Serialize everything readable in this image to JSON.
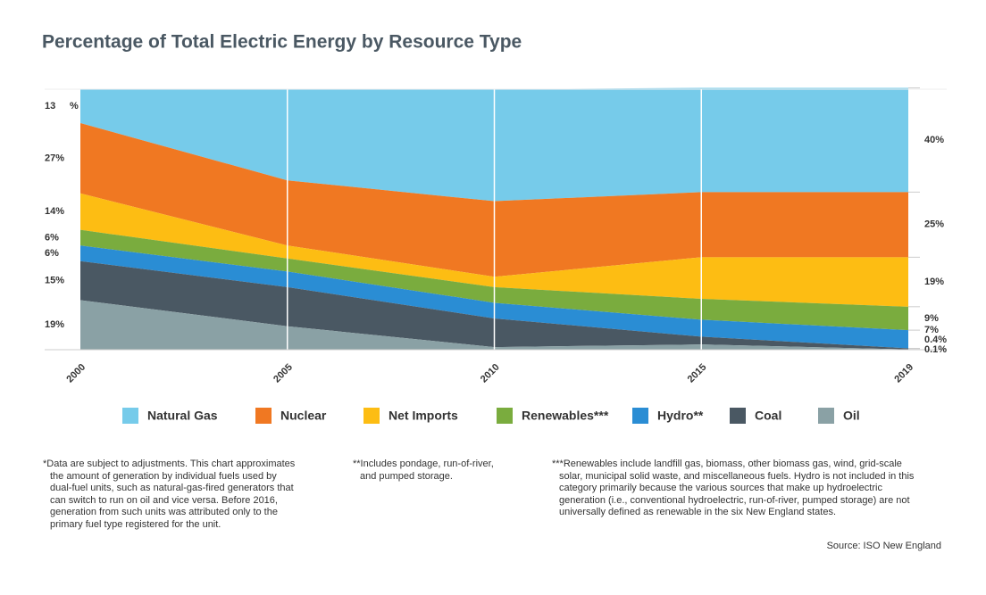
{
  "chart_data": {
    "type": "stacked_area",
    "title": "Percentage of Total Electric Energy by Resource Type",
    "categories": [
      "2000",
      "2005",
      "2010",
      "2015",
      "2019"
    ],
    "ylim": [
      0,
      100
    ],
    "y_unit_label": "%",
    "series": [
      {
        "name": "Natural Gas",
        "color": "#76cbea",
        "values": [
          13,
          35,
          43,
          40,
          40
        ],
        "value_labels": [
          "13",
          null,
          null,
          null,
          "40%"
        ]
      },
      {
        "name": "Nuclear",
        "color": "#f07822",
        "values": [
          27,
          25,
          29,
          25,
          25
        ],
        "value_labels": [
          "27%",
          null,
          null,
          null,
          "25%"
        ]
      },
      {
        "name": "Net Imports",
        "color": "#fdbd13",
        "values": [
          14,
          5,
          4,
          16,
          19
        ],
        "value_labels": [
          "14%",
          null,
          null,
          null,
          "19%"
        ]
      },
      {
        "name": "Renewables***",
        "color": "#7aac3e",
        "values": [
          6,
          5,
          6,
          8,
          9
        ],
        "value_labels": [
          "6%",
          null,
          null,
          null,
          "9%"
        ]
      },
      {
        "name": "Hydro**",
        "color": "#2a8dd4",
        "values": [
          6,
          6,
          6,
          6.5,
          7
        ],
        "value_labels": [
          "6%",
          null,
          null,
          null,
          "7%"
        ]
      },
      {
        "name": "Coal",
        "color": "#4a5863",
        "values": [
          15,
          15,
          11,
          3,
          0.4
        ],
        "value_labels": [
          "15%",
          null,
          null,
          null,
          "0.4%"
        ]
      },
      {
        "name": "Oil",
        "color": "#8aa1a5",
        "values": [
          19,
          9,
          1,
          2,
          0.1
        ],
        "value_labels": [
          "19%",
          null,
          null,
          null,
          "0.1%"
        ]
      }
    ],
    "notes": [
      [
        "*Data are subject to adjustments. This chart approximates",
        "the amount of generation by individual fuels used by",
        "dual-fuel units, such as natural-gas-fired generators that",
        "can switch to run on oil and vice versa. Before 2016,",
        "generation from such units was attributed only to the",
        "primary fuel type registered for the unit."
      ],
      [
        "**Includes pondage, run-of-river,",
        "and pumped storage."
      ],
      [
        "***Renewables include landfill gas, biomass, other biomass gas, wind, grid-scale",
        "solar, municipal solid waste, and miscellaneous fuels. Hydro is not included in this",
        "category primarily because the various sources that make up hydroelectric",
        "generation (i.e., conventional hydroelectric, run-of-river, pumped storage) are not",
        "universally defined as renewable in the six New England states."
      ]
    ],
    "source": "Source: ISO New England"
  }
}
